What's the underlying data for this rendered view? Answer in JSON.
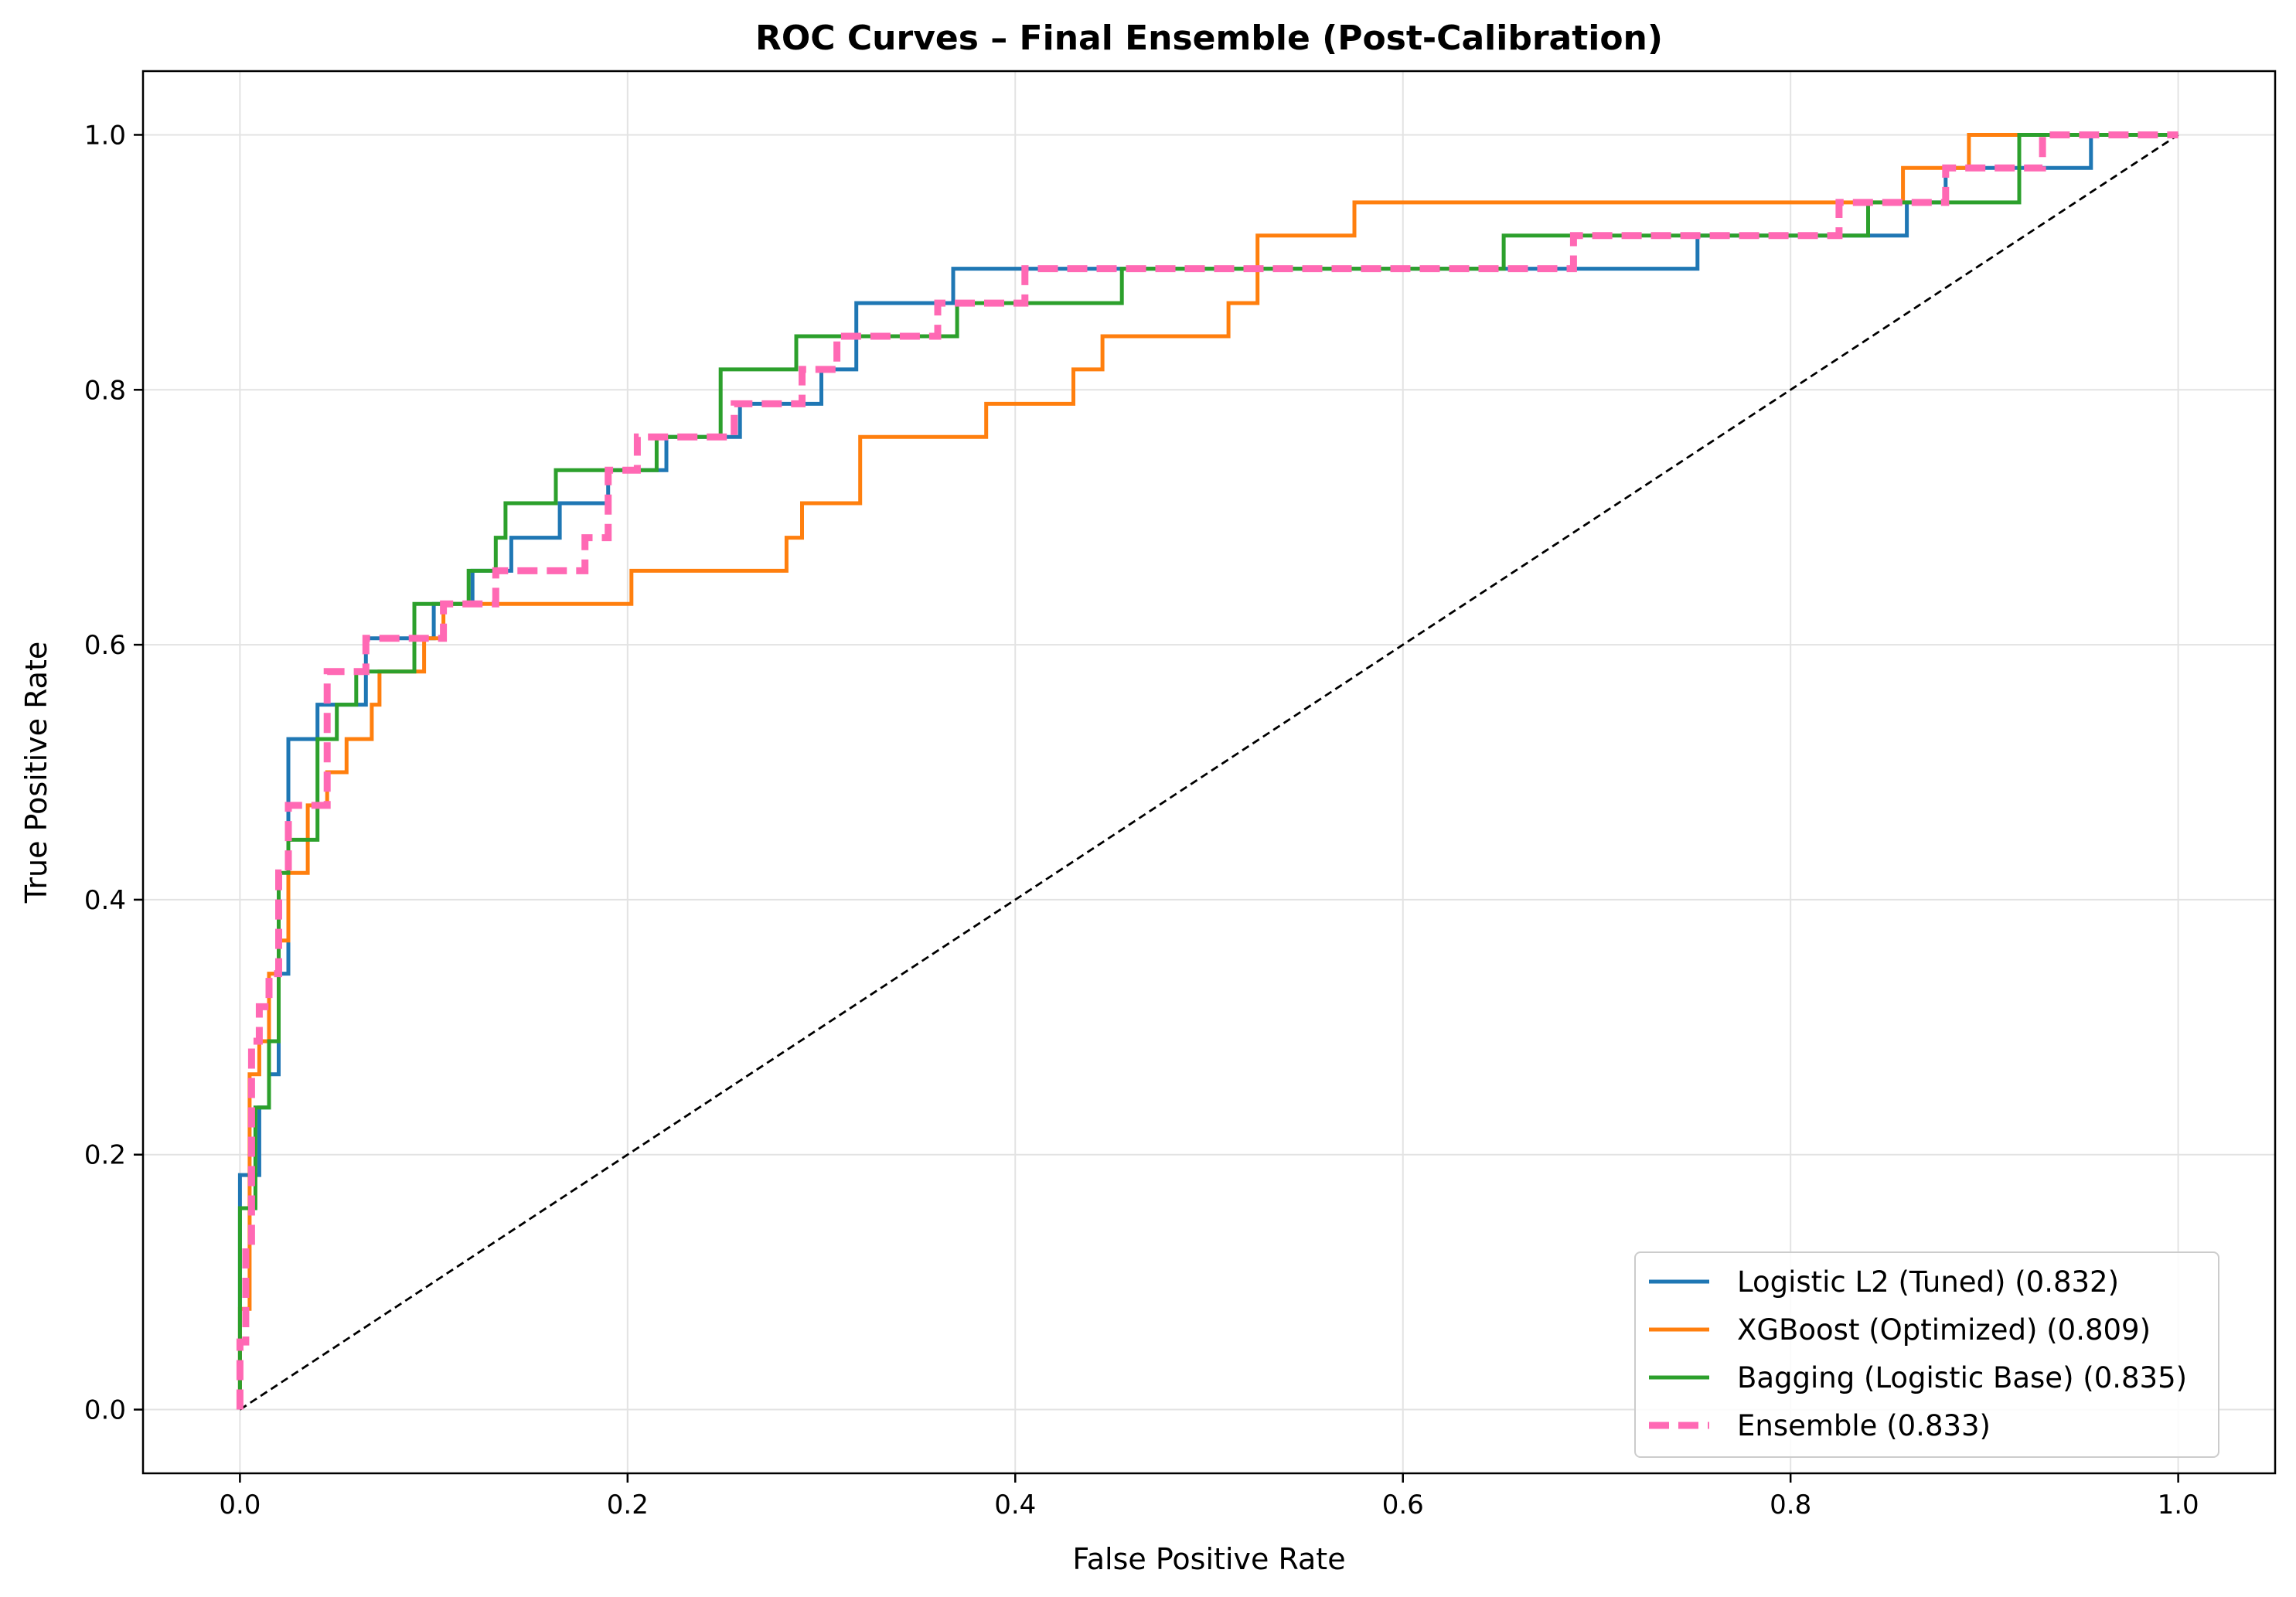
{
  "chart_data": {
    "type": "line",
    "title": "ROC Curves – Final Ensemble (Post-Calibration)",
    "xlabel": "False Positive Rate",
    "ylabel": "True Positive Rate",
    "xlim": [
      -0.05,
      1.05
    ],
    "ylim": [
      -0.05,
      1.05
    ],
    "xticks": [
      0.0,
      0.2,
      0.4,
      0.6,
      0.8,
      1.0
    ],
    "xtick_labels": [
      "0.0",
      "0.2",
      "0.4",
      "0.6",
      "0.8",
      "1.0"
    ],
    "yticks": [
      0.0,
      0.2,
      0.4,
      0.6,
      0.8,
      1.0
    ],
    "ytick_labels": [
      "0.0",
      "0.2",
      "0.4",
      "0.6",
      "0.8",
      "1.0"
    ],
    "grid": true,
    "legend_position": "lower-right",
    "chance_line": {
      "x": [
        0,
        1
      ],
      "y": [
        0,
        1
      ],
      "color": "#000000",
      "style": "dashed"
    },
    "series": [
      {
        "name": "Logistic L2 (Tuned) (0.832)",
        "color": "#1f77b4",
        "style": "solid",
        "x": [
          0,
          0,
          0.01,
          0.01,
          0.015,
          0.015,
          0.02,
          0.02,
          0.025,
          0.025,
          0.04,
          0.04,
          0.065,
          0.065,
          0.1,
          0.1,
          0.12,
          0.12,
          0.14,
          0.14,
          0.165,
          0.165,
          0.19,
          0.19,
          0.22,
          0.22,
          0.258,
          0.258,
          0.3,
          0.3,
          0.318,
          0.318,
          0.368,
          0.368,
          0.752,
          0.752,
          0.86,
          0.86,
          0.88,
          0.88,
          0.955,
          0.955,
          1.0
        ],
        "y": [
          0,
          0.184,
          0.184,
          0.237,
          0.237,
          0.263,
          0.263,
          0.342,
          0.342,
          0.526,
          0.526,
          0.553,
          0.553,
          0.605,
          0.605,
          0.632,
          0.632,
          0.658,
          0.658,
          0.684,
          0.684,
          0.711,
          0.711,
          0.737,
          0.737,
          0.763,
          0.763,
          0.789,
          0.789,
          0.816,
          0.816,
          0.868,
          0.868,
          0.895,
          0.895,
          0.921,
          0.921,
          0.947,
          0.947,
          0.974,
          0.974,
          1.0,
          1.0
        ]
      },
      {
        "name": "XGBoost (Optimized) (0.809)",
        "color": "#ff7f0e",
        "style": "solid",
        "x": [
          0,
          0,
          0.005,
          0.005,
          0.01,
          0.01,
          0.015,
          0.015,
          0.02,
          0.02,
          0.025,
          0.025,
          0.035,
          0.035,
          0.045,
          0.045,
          0.055,
          0.055,
          0.068,
          0.068,
          0.072,
          0.072,
          0.095,
          0.095,
          0.105,
          0.105,
          0.115,
          0.115,
          0.202,
          0.202,
          0.282,
          0.282,
          0.29,
          0.29,
          0.32,
          0.32,
          0.385,
          0.385,
          0.43,
          0.43,
          0.445,
          0.445,
          0.51,
          0.51,
          0.525,
          0.525,
          0.575,
          0.575,
          0.845,
          0.845,
          0.858,
          0.858,
          0.892,
          0.892,
          1.0
        ],
        "y": [
          0,
          0.079,
          0.079,
          0.263,
          0.263,
          0.289,
          0.289,
          0.342,
          0.342,
          0.368,
          0.368,
          0.421,
          0.421,
          0.474,
          0.474,
          0.5,
          0.5,
          0.526,
          0.526,
          0.553,
          0.553,
          0.579,
          0.579,
          0.605,
          0.605,
          0.632,
          0.632,
          0.632,
          0.632,
          0.658,
          0.658,
          0.684,
          0.684,
          0.711,
          0.711,
          0.763,
          0.763,
          0.789,
          0.789,
          0.816,
          0.816,
          0.842,
          0.842,
          0.868,
          0.868,
          0.921,
          0.921,
          0.947,
          0.947,
          0.947,
          0.947,
          0.974,
          0.974,
          1.0,
          1.0
        ]
      },
      {
        "name": "Bagging (Logistic Base) (0.835)",
        "color": "#2ca02c",
        "style": "solid",
        "x": [
          0,
          0,
          0.008,
          0.008,
          0.015,
          0.015,
          0.02,
          0.02,
          0.025,
          0.025,
          0.04,
          0.04,
          0.05,
          0.05,
          0.06,
          0.06,
          0.09,
          0.09,
          0.118,
          0.118,
          0.132,
          0.132,
          0.137,
          0.137,
          0.163,
          0.163,
          0.215,
          0.215,
          0.248,
          0.248,
          0.287,
          0.287,
          0.37,
          0.37,
          0.455,
          0.455,
          0.652,
          0.652,
          0.84,
          0.84,
          0.918,
          0.918,
          1.0
        ],
        "y": [
          0,
          0.158,
          0.158,
          0.237,
          0.237,
          0.289,
          0.289,
          0.421,
          0.421,
          0.447,
          0.447,
          0.526,
          0.526,
          0.553,
          0.553,
          0.579,
          0.579,
          0.632,
          0.632,
          0.658,
          0.658,
          0.684,
          0.684,
          0.711,
          0.711,
          0.737,
          0.737,
          0.763,
          0.763,
          0.816,
          0.816,
          0.842,
          0.842,
          0.868,
          0.868,
          0.895,
          0.895,
          0.921,
          0.921,
          0.947,
          0.947,
          1.0,
          1.0
        ]
      },
      {
        "name": "Ensemble (0.833)",
        "color": "#ff69b4",
        "style": "dashed",
        "x": [
          0,
          0,
          0.003,
          0.003,
          0.006,
          0.006,
          0.01,
          0.01,
          0.015,
          0.015,
          0.02,
          0.02,
          0.025,
          0.025,
          0.045,
          0.045,
          0.065,
          0.065,
          0.105,
          0.105,
          0.132,
          0.132,
          0.168,
          0.168,
          0.178,
          0.178,
          0.19,
          0.19,
          0.205,
          0.205,
          0.255,
          0.255,
          0.29,
          0.29,
          0.308,
          0.308,
          0.36,
          0.36,
          0.405,
          0.405,
          0.688,
          0.688,
          0.825,
          0.825,
          0.88,
          0.88,
          0.93,
          0.93,
          1.0
        ],
        "y": [
          0,
          0.053,
          0.053,
          0.132,
          0.132,
          0.289,
          0.289,
          0.316,
          0.316,
          0.342,
          0.342,
          0.421,
          0.421,
          0.474,
          0.474,
          0.579,
          0.579,
          0.605,
          0.605,
          0.632,
          0.632,
          0.658,
          0.658,
          0.658,
          0.658,
          0.684,
          0.684,
          0.737,
          0.737,
          0.763,
          0.763,
          0.789,
          0.789,
          0.816,
          0.816,
          0.842,
          0.842,
          0.868,
          0.868,
          0.895,
          0.895,
          0.921,
          0.921,
          0.947,
          0.947,
          0.974,
          0.974,
          1.0,
          1.0
        ]
      }
    ]
  }
}
